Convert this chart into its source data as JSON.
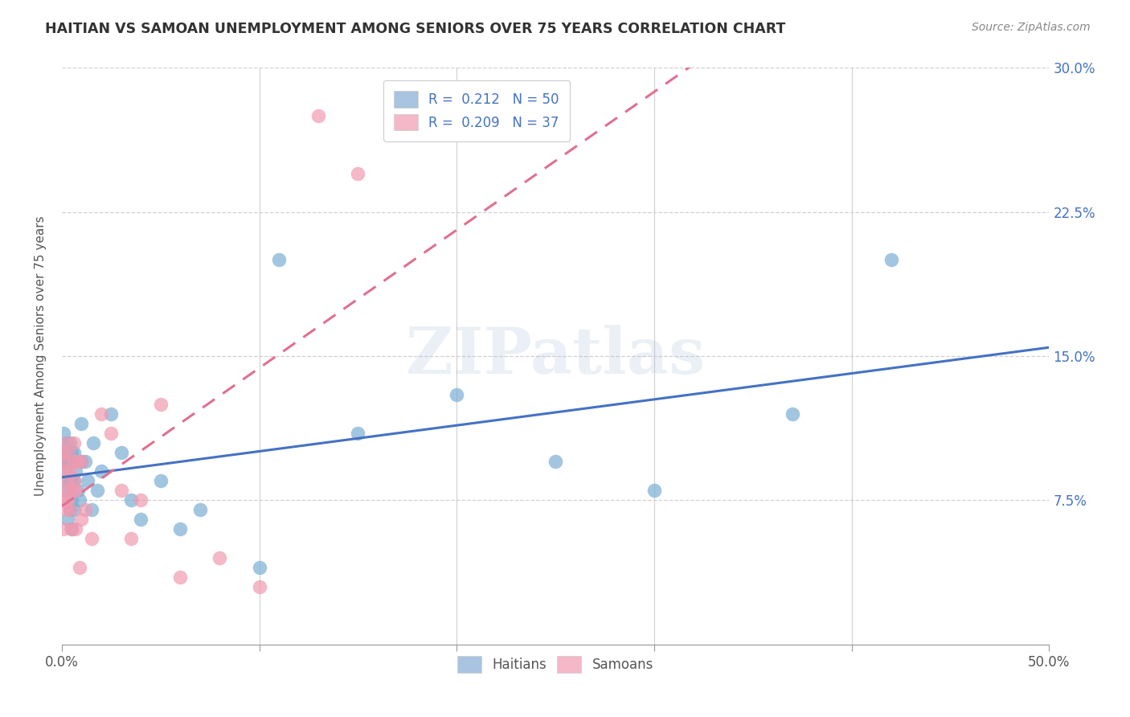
{
  "title": "HAITIAN VS SAMOAN UNEMPLOYMENT AMONG SENIORS OVER 75 YEARS CORRELATION CHART",
  "source": "Source: ZipAtlas.com",
  "ylabel": "Unemployment Among Seniors over 75 years",
  "xmin": 0.0,
  "xmax": 0.5,
  "ymin": 0.0,
  "ymax": 0.3,
  "yticks": [
    0.0,
    0.075,
    0.15,
    0.225,
    0.3
  ],
  "ytick_labels_right": [
    "",
    "7.5%",
    "15.0%",
    "22.5%",
    "30.0%"
  ],
  "bottom_legend": [
    "Haitians",
    "Samoans"
  ],
  "haitian_color": "#7bafd4",
  "samoan_color": "#f09ab0",
  "haitian_line_color": "#4472c4",
  "samoan_line_color": "#e07090",
  "watermark": "ZIPatlas",
  "haitian_x": [
    0.001,
    0.001,
    0.001,
    0.002,
    0.002,
    0.002,
    0.002,
    0.002,
    0.003,
    0.003,
    0.003,
    0.003,
    0.004,
    0.004,
    0.004,
    0.004,
    0.005,
    0.005,
    0.005,
    0.005,
    0.005,
    0.006,
    0.006,
    0.006,
    0.007,
    0.008,
    0.009,
    0.01,
    0.01,
    0.012,
    0.013,
    0.015,
    0.016,
    0.018,
    0.02,
    0.025,
    0.03,
    0.035,
    0.04,
    0.05,
    0.06,
    0.07,
    0.1,
    0.11,
    0.15,
    0.2,
    0.25,
    0.3,
    0.37,
    0.42
  ],
  "haitian_y": [
    0.095,
    0.1,
    0.11,
    0.085,
    0.09,
    0.095,
    0.1,
    0.105,
    0.065,
    0.08,
    0.095,
    0.1,
    0.07,
    0.085,
    0.095,
    0.105,
    0.06,
    0.075,
    0.085,
    0.095,
    0.1,
    0.07,
    0.085,
    0.1,
    0.09,
    0.08,
    0.075,
    0.095,
    0.115,
    0.095,
    0.085,
    0.07,
    0.105,
    0.08,
    0.09,
    0.12,
    0.1,
    0.075,
    0.065,
    0.085,
    0.06,
    0.07,
    0.04,
    0.2,
    0.11,
    0.13,
    0.095,
    0.08,
    0.12,
    0.2
  ],
  "samoan_x": [
    0.001,
    0.001,
    0.001,
    0.001,
    0.002,
    0.002,
    0.002,
    0.002,
    0.003,
    0.003,
    0.003,
    0.004,
    0.004,
    0.005,
    0.005,
    0.006,
    0.006,
    0.006,
    0.007,
    0.007,
    0.008,
    0.009,
    0.01,
    0.01,
    0.012,
    0.015,
    0.02,
    0.025,
    0.03,
    0.035,
    0.04,
    0.05,
    0.06,
    0.08,
    0.1,
    0.13,
    0.15
  ],
  "samoan_y": [
    0.06,
    0.075,
    0.095,
    0.1,
    0.07,
    0.08,
    0.09,
    0.105,
    0.075,
    0.085,
    0.1,
    0.07,
    0.09,
    0.06,
    0.08,
    0.085,
    0.095,
    0.105,
    0.06,
    0.08,
    0.095,
    0.04,
    0.065,
    0.095,
    0.07,
    0.055,
    0.12,
    0.11,
    0.08,
    0.055,
    0.075,
    0.125,
    0.035,
    0.045,
    0.03,
    0.275,
    0.245
  ]
}
